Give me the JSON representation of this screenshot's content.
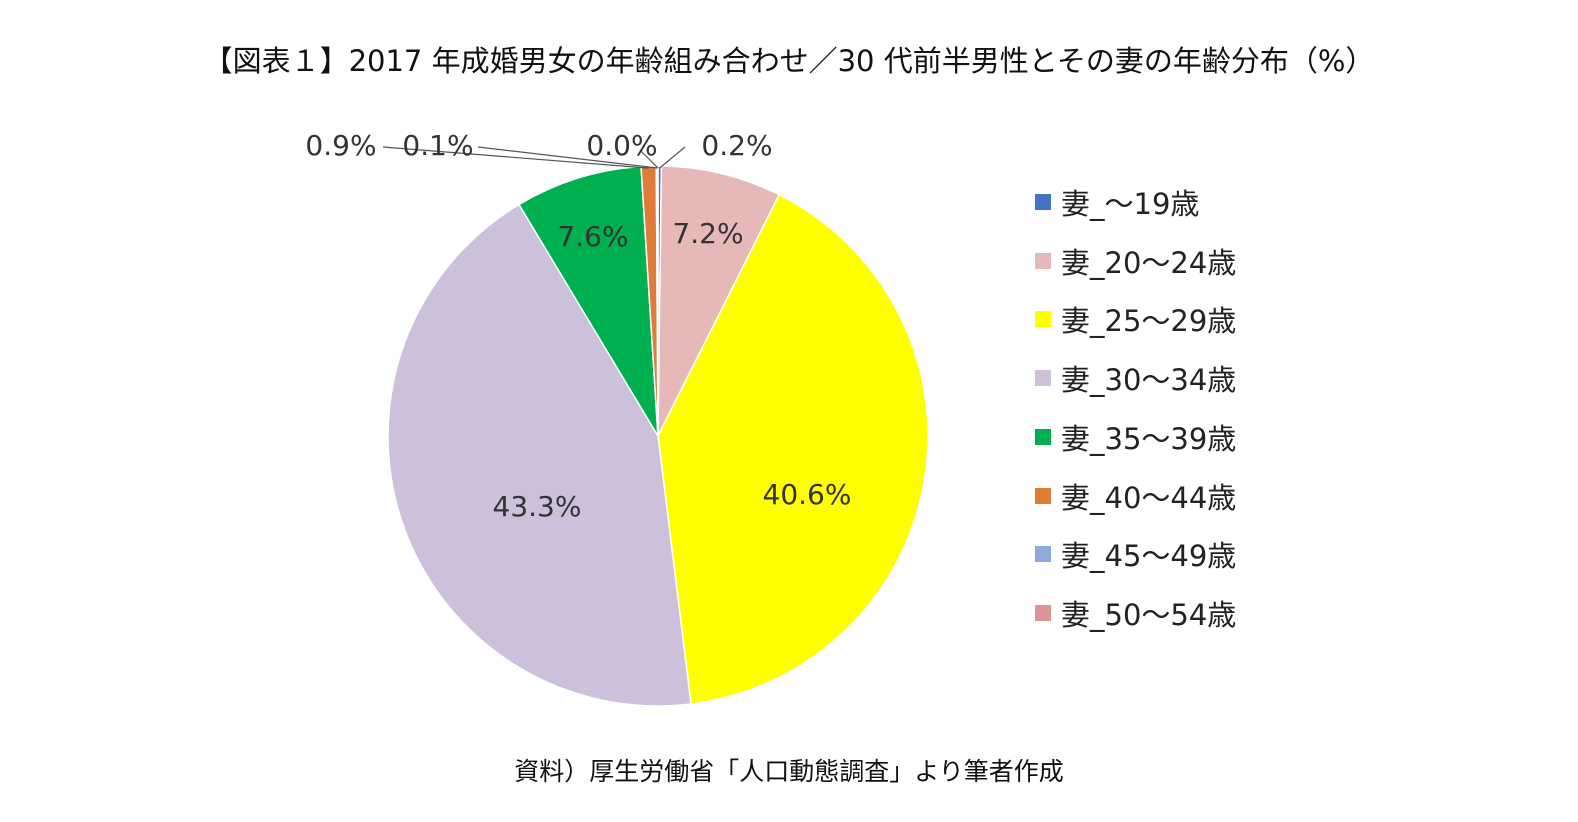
{
  "title": "【図表１】2017 年成婚男女の年齢組み合わせ／30 代前半男性とその妻の年齢分布（%）",
  "source": "資料）厚生労働省「人口動態調査」より筆者作成",
  "chart_data": {
    "type": "pie",
    "title": "【図表１】2017 年成婚男女の年齢組み合わせ／30 代前半男性とその妻の年齢分布（%）",
    "legend_position": "right",
    "categories": [
      "妻_～19歳",
      "妻_20～24歳",
      "妻_25～29歳",
      "妻_30～34歳",
      "妻_35～39歳",
      "妻_40～44歳",
      "妻_45～49歳",
      "妻_50～54歳"
    ],
    "values": [
      0.2,
      7.2,
      40.6,
      43.3,
      7.6,
      0.9,
      0.1,
      0.0
    ],
    "data_labels": [
      "0.2%",
      "7.2%",
      "40.6%",
      "43.3%",
      "7.6%",
      "0.9%",
      "0.1%",
      "0.0%"
    ],
    "colors": [
      "#4472C4",
      "#E6B9B8",
      "#FFFF00",
      "#CCC0DA",
      "#00B050",
      "#E07B39",
      "#8EA9DB",
      "#D99694"
    ]
  }
}
